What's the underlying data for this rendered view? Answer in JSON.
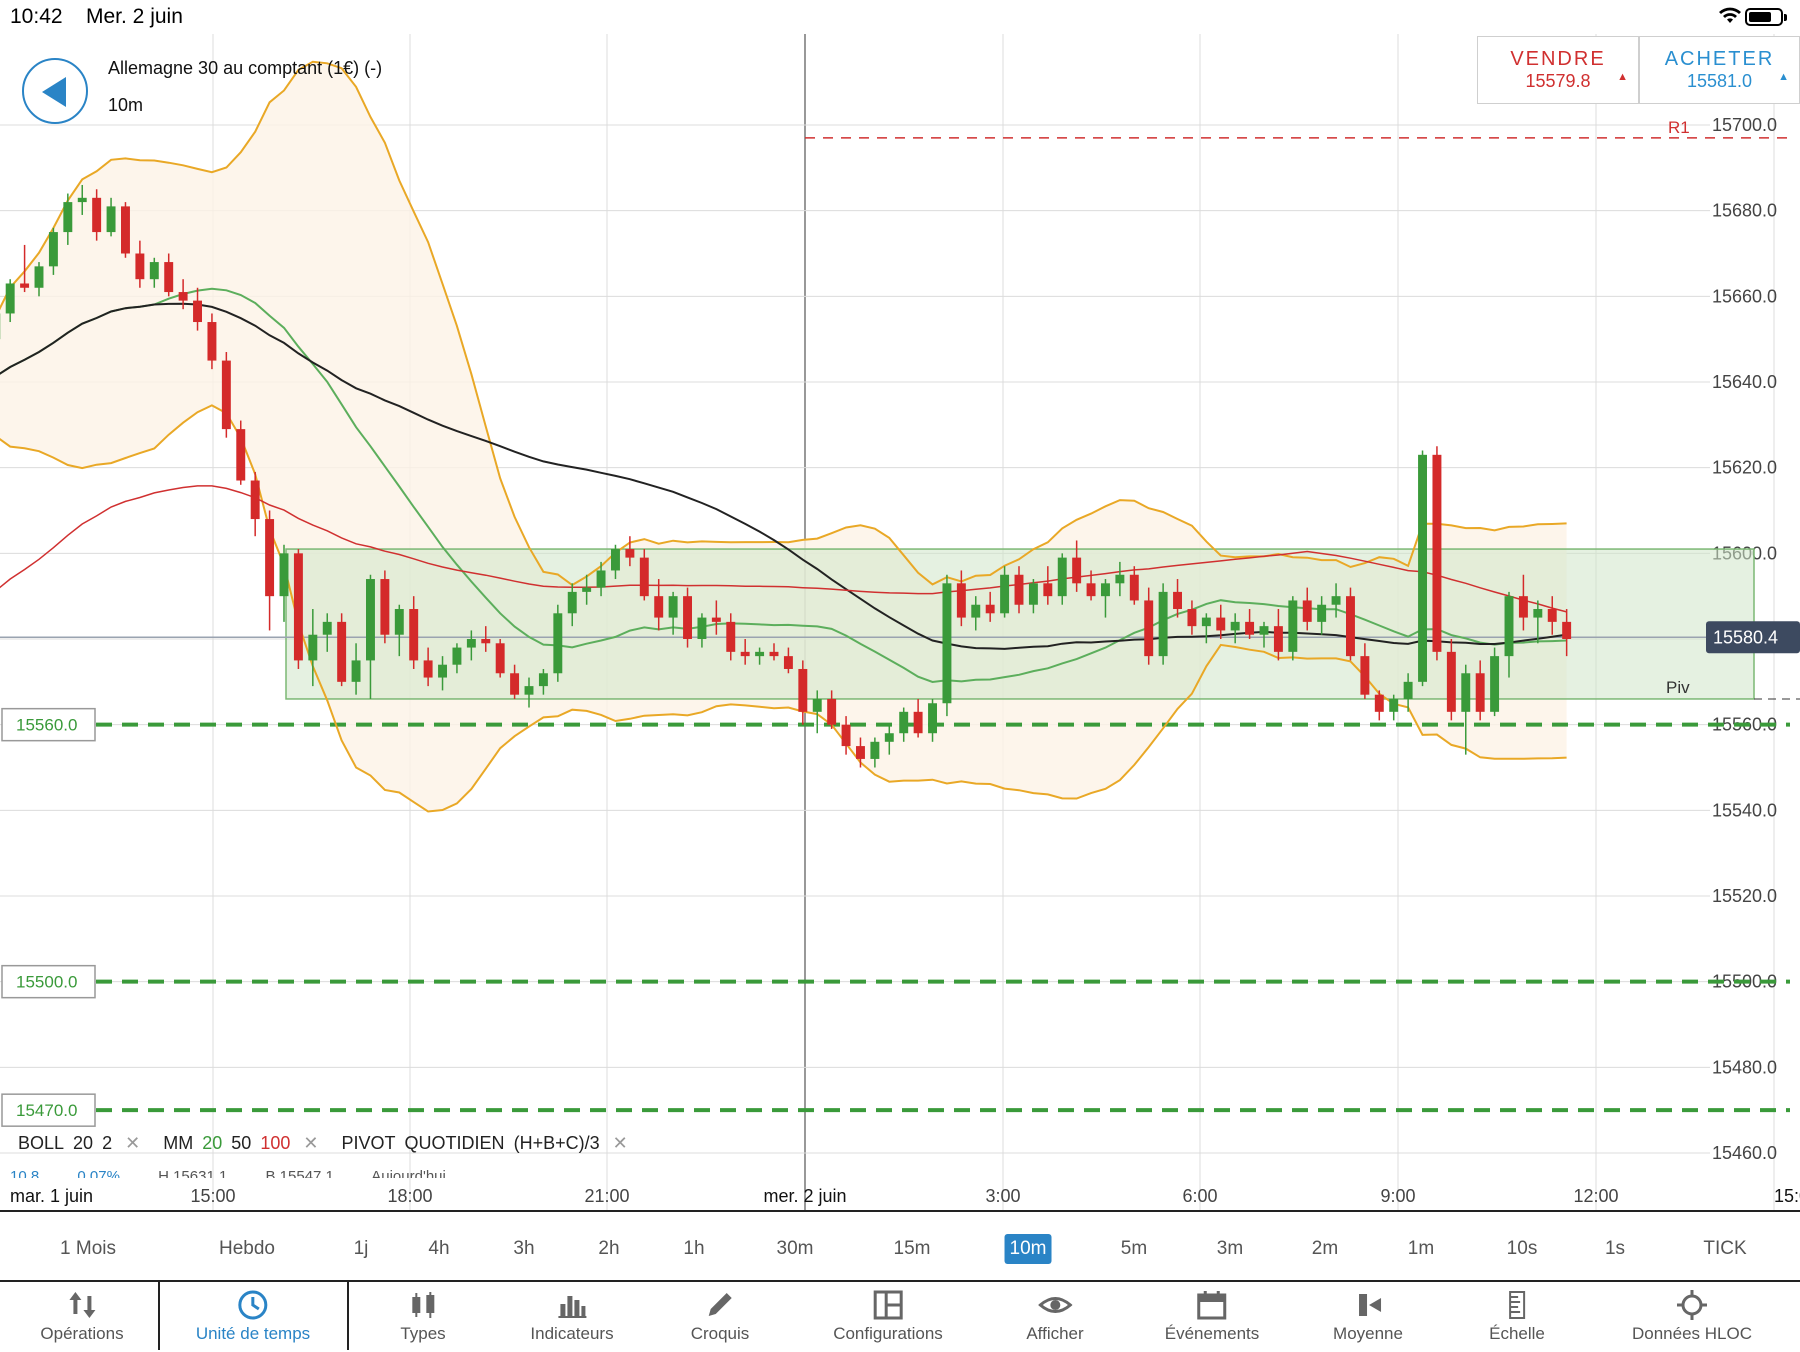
{
  "status_bar": {
    "time": "10:42",
    "date": "Mer. 2 juin"
  },
  "header": {
    "instrument": "Allemagne 30 au comptant (1€) (-)",
    "timeframe": "10m",
    "sell": {
      "label": "VENDRE",
      "price": "15579.8"
    },
    "buy": {
      "label": "ACHETER",
      "price": "15581.0"
    }
  },
  "colors": {
    "accent": "#2a84c6",
    "up": "#3a9a3a",
    "down": "#d42a2a",
    "boll": "#e9a826",
    "sell": "#d03030",
    "buy": "#2a8fd0"
  },
  "chart_data": {
    "type": "candlestick",
    "y_ticks": [
      "15700.0",
      "15680.0",
      "15660.0",
      "15640.0",
      "15620.0",
      "15600.0",
      "15580.0",
      "15560.0",
      "15540.0",
      "15520.0",
      "15500.0",
      "15480.0",
      "15460.0"
    ],
    "y_range": [
      15453,
      15725
    ],
    "x_labels": [
      "mar. 1 juin",
      "15:00",
      "18:00",
      "21:00",
      "mer. 2 juin",
      "3:00",
      "6:00",
      "9:00",
      "12:00",
      "15:0"
    ],
    "current_price": "15580.4",
    "levels": [
      {
        "label": "15560.0",
        "value": 15560,
        "color": "#3a9a3a",
        "style": "dashed"
      },
      {
        "label": "15500.0",
        "value": 15500,
        "color": "#3a9a3a",
        "style": "dashed"
      },
      {
        "label": "15470.0",
        "value": 15470,
        "color": "#3a9a3a",
        "style": "dashed"
      }
    ],
    "pivot": {
      "label": "Piv",
      "value": 15566
    },
    "r1": {
      "label": "R1",
      "value": 15697
    },
    "zone": {
      "low": 15566,
      "high": 15601
    },
    "candles": [
      [
        15632,
        15636,
        15630,
        15634
      ],
      [
        15634,
        15639,
        15632,
        15637
      ],
      [
        15637,
        15641,
        15634,
        15638
      ],
      [
        15638,
        15640,
        15636,
        15637
      ],
      [
        15637,
        15639,
        15632,
        15636
      ],
      [
        15636,
        15640,
        15634,
        15639
      ],
      [
        15639,
        15646,
        15637,
        15645
      ],
      [
        15645,
        15652,
        15643,
        15650
      ],
      [
        15650,
        15658,
        15648,
        15656
      ],
      [
        15656,
        15664,
        15654,
        15663
      ],
      [
        15663,
        15672,
        15661,
        15662
      ],
      [
        15662,
        15668,
        15660,
        15667
      ],
      [
        15667,
        15676,
        15665,
        15675
      ],
      [
        15675,
        15684,
        15672,
        15682
      ],
      [
        15682,
        15686,
        15679,
        15683
      ],
      [
        15683,
        15685,
        15673,
        15675
      ],
      [
        15675,
        15683,
        15674,
        15681
      ],
      [
        15681,
        15682,
        15669,
        15670
      ],
      [
        15670,
        15673,
        15662,
        15664
      ],
      [
        15664,
        15669,
        15662,
        15668
      ],
      [
        15668,
        15670,
        15660,
        15661
      ],
      [
        15661,
        15664,
        15657,
        15659
      ],
      [
        15659,
        15662,
        15652,
        15654
      ],
      [
        15654,
        15656,
        15643,
        15645
      ],
      [
        15645,
        15647,
        15627,
        15629
      ],
      [
        15629,
        15631,
        15616,
        15617
      ],
      [
        15617,
        15619,
        15604,
        15608
      ],
      [
        15608,
        15610,
        15582,
        15590
      ],
      [
        15590,
        15602,
        15584,
        15600
      ],
      [
        15600,
        15601,
        15573,
        15575
      ],
      [
        15575,
        15587,
        15569,
        15581
      ],
      [
        15581,
        15586,
        15577,
        15584
      ],
      [
        15584,
        15586,
        15569,
        15570
      ],
      [
        15570,
        15579,
        15567,
        15575
      ],
      [
        15575,
        15595,
        15566,
        15594
      ],
      [
        15594,
        15596,
        15579,
        15581
      ],
      [
        15581,
        15588,
        15576,
        15587
      ],
      [
        15587,
        15590,
        15573,
        15575
      ],
      [
        15575,
        15578,
        15569,
        15571
      ],
      [
        15571,
        15576,
        15568,
        15574
      ],
      [
        15574,
        15579,
        15572,
        15578
      ],
      [
        15578,
        15582,
        15575,
        15580
      ],
      [
        15580,
        15583,
        15577,
        15579
      ],
      [
        15579,
        15580,
        15571,
        15572
      ],
      [
        15572,
        15574,
        15566,
        15567
      ],
      [
        15567,
        15571,
        15564,
        15569
      ],
      [
        15569,
        15573,
        15567,
        15572
      ],
      [
        15572,
        15588,
        15570,
        15586
      ],
      [
        15586,
        15593,
        15583,
        15591
      ],
      [
        15591,
        15595,
        15588,
        15592
      ],
      [
        15592,
        15598,
        15590,
        15596
      ],
      [
        15596,
        15602,
        15594,
        15601
      ],
      [
        15601,
        15604,
        15597,
        15599
      ],
      [
        15599,
        15601,
        15589,
        15590
      ],
      [
        15590,
        15594,
        15582,
        15585
      ],
      [
        15585,
        15591,
        15581,
        15590
      ],
      [
        15590,
        15592,
        15578,
        15580
      ],
      [
        15580,
        15586,
        15578,
        15585
      ],
      [
        15585,
        15589,
        15581,
        15584
      ],
      [
        15584,
        15586,
        15575,
        15577
      ],
      [
        15577,
        15580,
        15574,
        15576
      ],
      [
        15576,
        15578,
        15574,
        15577
      ],
      [
        15577,
        15579,
        15575,
        15576
      ],
      [
        15576,
        15578,
        15572,
        15573
      ],
      [
        15573,
        15575,
        15560,
        15563
      ],
      [
        15563,
        15568,
        15558,
        15566
      ],
      [
        15566,
        15568,
        15559,
        15560
      ],
      [
        15560,
        15562,
        15553,
        15555
      ],
      [
        15555,
        15557,
        15550,
        15552
      ],
      [
        15552,
        15557,
        15550,
        15556
      ],
      [
        15556,
        15560,
        15553,
        15558
      ],
      [
        15558,
        15564,
        15556,
        15563
      ],
      [
        15563,
        15566,
        15557,
        15558
      ],
      [
        15558,
        15566,
        15556,
        15565
      ],
      [
        15565,
        15595,
        15562,
        15593
      ],
      [
        15593,
        15596,
        15583,
        15585
      ],
      [
        15585,
        15590,
        15582,
        15588
      ],
      [
        15588,
        15591,
        15584,
        15586
      ],
      [
        15586,
        15597,
        15585,
        15595
      ],
      [
        15595,
        15597,
        15586,
        15588
      ],
      [
        15588,
        15594,
        15586,
        15593
      ],
      [
        15593,
        15597,
        15588,
        15590
      ],
      [
        15590,
        15600,
        15588,
        15599
      ],
      [
        15599,
        15603,
        15591,
        15593
      ],
      [
        15593,
        15596,
        15589,
        15590
      ],
      [
        15590,
        15594,
        15585,
        15593
      ],
      [
        15593,
        15598,
        15590,
        15595
      ],
      [
        15595,
        15597,
        15588,
        15589
      ],
      [
        15589,
        15592,
        15574,
        15576
      ],
      [
        15576,
        15593,
        15574,
        15591
      ],
      [
        15591,
        15594,
        15585,
        15587
      ],
      [
        15587,
        15589,
        15581,
        15583
      ],
      [
        15583,
        15586,
        15579,
        15585
      ],
      [
        15585,
        15588,
        15580,
        15582
      ],
      [
        15582,
        15586,
        15579,
        15584
      ],
      [
        15584,
        15587,
        15580,
        15581
      ],
      [
        15581,
        15584,
        15578,
        15583
      ],
      [
        15583,
        15587,
        15575,
        15577
      ],
      [
        15577,
        15590,
        15575,
        15589
      ],
      [
        15589,
        15592,
        15582,
        15584
      ],
      [
        15584,
        15590,
        15581,
        15588
      ],
      [
        15588,
        15593,
        15585,
        15590
      ],
      [
        15590,
        15592,
        15575,
        15576
      ],
      [
        15576,
        15579,
        15566,
        15567
      ],
      [
        15567,
        15568,
        15561,
        15563
      ],
      [
        15563,
        15567,
        15561,
        15566
      ],
      [
        15566,
        15572,
        15563,
        15570
      ],
      [
        15570,
        15624,
        15569,
        15623
      ],
      [
        15623,
        15625,
        15575,
        15577
      ],
      [
        15577,
        15580,
        15561,
        15563
      ],
      [
        15563,
        15574,
        15553,
        15572
      ],
      [
        15572,
        15575,
        15561,
        15563
      ],
      [
        15563,
        15578,
        15562,
        15576
      ],
      [
        15576,
        15591,
        15571,
        15590
      ],
      [
        15590,
        15595,
        15582,
        15585
      ],
      [
        15585,
        15589,
        15579,
        15587
      ],
      [
        15587,
        15590,
        15581,
        15584
      ],
      [
        15584,
        15587,
        15576,
        15580
      ]
    ]
  },
  "indicators": {
    "boll": {
      "name": "BOLL",
      "p1": "20",
      "p2": "2"
    },
    "mm": {
      "name": "MM",
      "p1": "20",
      "p2": "50",
      "p3": "100"
    },
    "pivot": {
      "name": "PIVOT",
      "p1": "QUOTIDIEN",
      "p2": "(H+B+C)/3"
    },
    "sub": {
      "a": "10.8",
      "b": "0.07%",
      "c": "H 15631.1",
      "d": "B 15547.1",
      "e": "Aujourd'hui"
    }
  },
  "timeframes": [
    "1 Mois",
    "Hebdo",
    "1j",
    "4h",
    "3h",
    "2h",
    "1h",
    "30m",
    "15m",
    "10m",
    "5m",
    "3m",
    "2m",
    "1m",
    "10s",
    "1s",
    "TICK"
  ],
  "active_timeframe": "10m",
  "tabs": [
    {
      "label": "Opérations",
      "icon": "arrows-updown-icon"
    },
    {
      "label": "Unité de temps",
      "icon": "clock-icon"
    },
    {
      "label": "Types",
      "icon": "candles-icon"
    },
    {
      "label": "Indicateurs",
      "icon": "bar-chart-icon"
    },
    {
      "label": "Croquis",
      "icon": "pencil-icon"
    },
    {
      "label": "Configurations",
      "icon": "layout-icon"
    },
    {
      "label": "Afficher",
      "icon": "eye-icon"
    },
    {
      "label": "Événements",
      "icon": "calendar-icon"
    },
    {
      "label": "Moyenne",
      "icon": "average-icon"
    },
    {
      "label": "Échelle",
      "icon": "scale-icon"
    },
    {
      "label": "Données HLOC",
      "icon": "crosshair-icon"
    }
  ]
}
